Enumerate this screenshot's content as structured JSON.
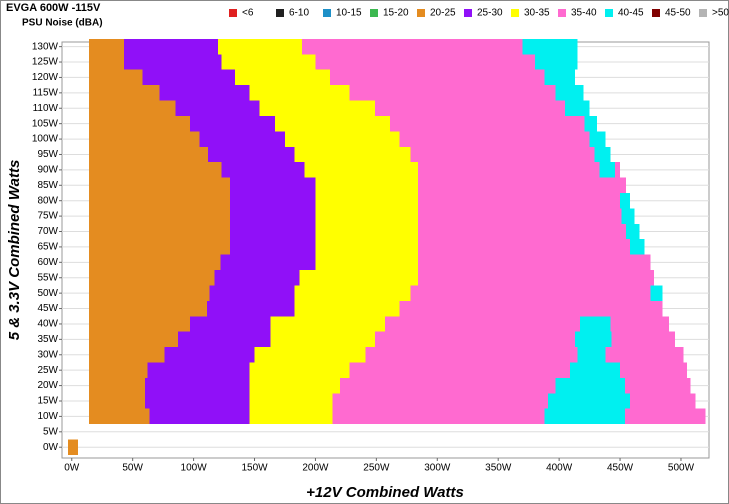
{
  "chart_data": {
    "type": "region-map",
    "title": "EVGA 600W -115V",
    "subtitle": "PSU Noise (dBA)",
    "x_label": "+12V Combined Watts",
    "y_label": "5 & 3.3V Combined Watts",
    "xlim": [
      -8,
      523
    ],
    "ylim": [
      -3.5,
      131.5
    ],
    "xticks": [
      {
        "value": 0,
        "label": "0W"
      },
      {
        "value": 50,
        "label": "50W"
      },
      {
        "value": 100,
        "label": "100W"
      },
      {
        "value": 150,
        "label": "150W"
      },
      {
        "value": 200,
        "label": "200W"
      },
      {
        "value": 250,
        "label": "250W"
      },
      {
        "value": 300,
        "label": "300W"
      },
      {
        "value": 350,
        "label": "350W"
      },
      {
        "value": 400,
        "label": "400W"
      },
      {
        "value": 450,
        "label": "450W"
      },
      {
        "value": 500,
        "label": "500W"
      }
    ],
    "yticks": [
      {
        "value": 0,
        "label": "0W"
      },
      {
        "value": 5,
        "label": "5W"
      },
      {
        "value": 10,
        "label": "10W"
      },
      {
        "value": 15,
        "label": "15W"
      },
      {
        "value": 20,
        "label": "20W"
      },
      {
        "value": 25,
        "label": "25W"
      },
      {
        "value": 30,
        "label": "30W"
      },
      {
        "value": 35,
        "label": "35W"
      },
      {
        "value": 40,
        "label": "40W"
      },
      {
        "value": 45,
        "label": "45W"
      },
      {
        "value": 50,
        "label": "50W"
      },
      {
        "value": 55,
        "label": "55W"
      },
      {
        "value": 60,
        "label": "60W"
      },
      {
        "value": 65,
        "label": "65W"
      },
      {
        "value": 70,
        "label": "70W"
      },
      {
        "value": 75,
        "label": "75W"
      },
      {
        "value": 80,
        "label": "80W"
      },
      {
        "value": 85,
        "label": "85W"
      },
      {
        "value": 90,
        "label": "90W"
      },
      {
        "value": 95,
        "label": "95W"
      },
      {
        "value": 100,
        "label": "100W"
      },
      {
        "value": 105,
        "label": "105W"
      },
      {
        "value": 110,
        "label": "110W"
      },
      {
        "value": 115,
        "label": "115W"
      },
      {
        "value": 120,
        "label": "120W"
      },
      {
        "value": 125,
        "label": "125W"
      },
      {
        "value": 130,
        "label": "130W"
      }
    ],
    "grid": true,
    "series": [
      {
        "name": "<6",
        "color": "#e02020",
        "cells": []
      },
      {
        "name": "6-10",
        "color": "#202020",
        "cells": []
      },
      {
        "name": "10-15",
        "color": "#1e90c8",
        "cells": []
      },
      {
        "name": "15-20",
        "color": "#3cb850",
        "cells": []
      },
      {
        "name": "20-25",
        "color": "#e48c20",
        "cells": [
          [
            0,
            -3,
            5
          ],
          [
            130,
            14,
            43
          ],
          [
            125,
            14,
            43
          ],
          [
            120,
            14,
            58
          ],
          [
            115,
            14,
            72
          ],
          [
            110,
            14,
            85
          ],
          [
            105,
            14,
            97
          ],
          [
            100,
            14,
            105
          ],
          [
            95,
            14,
            112
          ],
          [
            90,
            14,
            123
          ],
          [
            85,
            14,
            130
          ],
          [
            80,
            14,
            130
          ],
          [
            75,
            14,
            130
          ],
          [
            70,
            14,
            130
          ],
          [
            65,
            14,
            130
          ],
          [
            60,
            14,
            122
          ],
          [
            55,
            14,
            117
          ],
          [
            50,
            14,
            113
          ],
          [
            45,
            14,
            111
          ],
          [
            40,
            14,
            97
          ],
          [
            35,
            14,
            87
          ],
          [
            30,
            14,
            76
          ],
          [
            25,
            14,
            62
          ],
          [
            20,
            14,
            60
          ],
          [
            15,
            14,
            60
          ],
          [
            10,
            14,
            64
          ]
        ]
      },
      {
        "name": "25-30",
        "color": "#9010f8",
        "cells": [
          [
            130,
            43,
            120
          ],
          [
            125,
            43,
            123
          ],
          [
            120,
            58,
            134
          ],
          [
            115,
            72,
            146
          ],
          [
            110,
            85,
            154
          ],
          [
            105,
            97,
            167
          ],
          [
            100,
            105,
            175
          ],
          [
            95,
            112,
            183
          ],
          [
            90,
            123,
            191
          ],
          [
            85,
            130,
            200
          ],
          [
            80,
            130,
            200
          ],
          [
            75,
            130,
            200
          ],
          [
            70,
            130,
            200
          ],
          [
            65,
            130,
            200
          ],
          [
            60,
            122,
            200
          ],
          [
            55,
            117,
            187
          ],
          [
            50,
            113,
            183
          ],
          [
            45,
            111,
            183
          ],
          [
            40,
            97,
            163
          ],
          [
            35,
            87,
            163
          ],
          [
            30,
            76,
            150
          ],
          [
            25,
            62,
            146
          ],
          [
            20,
            60,
            146
          ],
          [
            15,
            60,
            146
          ],
          [
            10,
            64,
            146
          ]
        ]
      },
      {
        "name": "30-35",
        "color": "#ffff00",
        "cells": [
          [
            130,
            120,
            189
          ],
          [
            125,
            123,
            200
          ],
          [
            120,
            134,
            212
          ],
          [
            115,
            146,
            228
          ],
          [
            110,
            154,
            249
          ],
          [
            105,
            167,
            261
          ],
          [
            100,
            175,
            269
          ],
          [
            95,
            183,
            278
          ],
          [
            90,
            191,
            284
          ],
          [
            85,
            200,
            284
          ],
          [
            80,
            200,
            284
          ],
          [
            75,
            200,
            284
          ],
          [
            70,
            200,
            284
          ],
          [
            65,
            200,
            284
          ],
          [
            60,
            200,
            284
          ],
          [
            55,
            187,
            284
          ],
          [
            50,
            183,
            278
          ],
          [
            45,
            183,
            269
          ],
          [
            40,
            163,
            257
          ],
          [
            35,
            163,
            249
          ],
          [
            30,
            150,
            241
          ],
          [
            25,
            146,
            228
          ],
          [
            20,
            146,
            220
          ],
          [
            15,
            146,
            214
          ],
          [
            10,
            146,
            214
          ]
        ]
      },
      {
        "name": "35-40",
        "color": "#ff6ad0",
        "cells": [
          [
            130,
            189,
            370
          ],
          [
            125,
            200,
            380
          ],
          [
            120,
            212,
            388
          ],
          [
            115,
            228,
            397
          ],
          [
            110,
            249,
            405
          ],
          [
            105,
            261,
            421
          ],
          [
            100,
            269,
            425
          ],
          [
            95,
            278,
            429
          ],
          [
            90,
            284,
            433
          ],
          [
            90,
            446,
            450
          ],
          [
            85,
            284,
            455
          ],
          [
            80,
            284,
            450
          ],
          [
            75,
            284,
            451
          ],
          [
            70,
            284,
            455
          ],
          [
            65,
            284,
            458
          ],
          [
            60,
            284,
            475
          ],
          [
            55,
            284,
            478
          ],
          [
            50,
            278,
            475
          ],
          [
            45,
            269,
            485
          ],
          [
            40,
            257,
            417
          ],
          [
            40,
            442,
            490
          ],
          [
            35,
            249,
            413
          ],
          [
            35,
            443,
            495
          ],
          [
            30,
            241,
            415
          ],
          [
            30,
            438,
            502
          ],
          [
            25,
            228,
            409
          ],
          [
            25,
            450,
            505
          ],
          [
            20,
            220,
            397
          ],
          [
            20,
            454,
            508
          ],
          [
            15,
            214,
            391
          ],
          [
            15,
            458,
            512
          ],
          [
            10,
            214,
            388
          ],
          [
            10,
            454,
            520
          ]
        ]
      },
      {
        "name": "40-45",
        "color": "#00f0f0",
        "cells": [
          [
            130,
            370,
            415
          ],
          [
            125,
            380,
            415
          ],
          [
            120,
            388,
            413
          ],
          [
            115,
            397,
            420
          ],
          [
            110,
            405,
            425
          ],
          [
            105,
            421,
            431
          ],
          [
            100,
            425,
            438
          ],
          [
            95,
            429,
            442
          ],
          [
            90,
            433,
            446
          ],
          [
            80,
            450,
            458
          ],
          [
            75,
            451,
            462
          ],
          [
            70,
            455,
            466
          ],
          [
            65,
            458,
            470
          ],
          [
            50,
            475,
            485
          ],
          [
            40,
            417,
            442
          ],
          [
            35,
            413,
            443
          ],
          [
            30,
            415,
            438
          ],
          [
            25,
            409,
            450
          ],
          [
            20,
            397,
            454
          ],
          [
            15,
            391,
            458
          ],
          [
            10,
            388,
            454
          ]
        ]
      },
      {
        "name": "45-50",
        "color": "#800000",
        "cells": []
      },
      {
        "name": ">50",
        "color": "#b4b4b4",
        "cells": []
      }
    ]
  }
}
